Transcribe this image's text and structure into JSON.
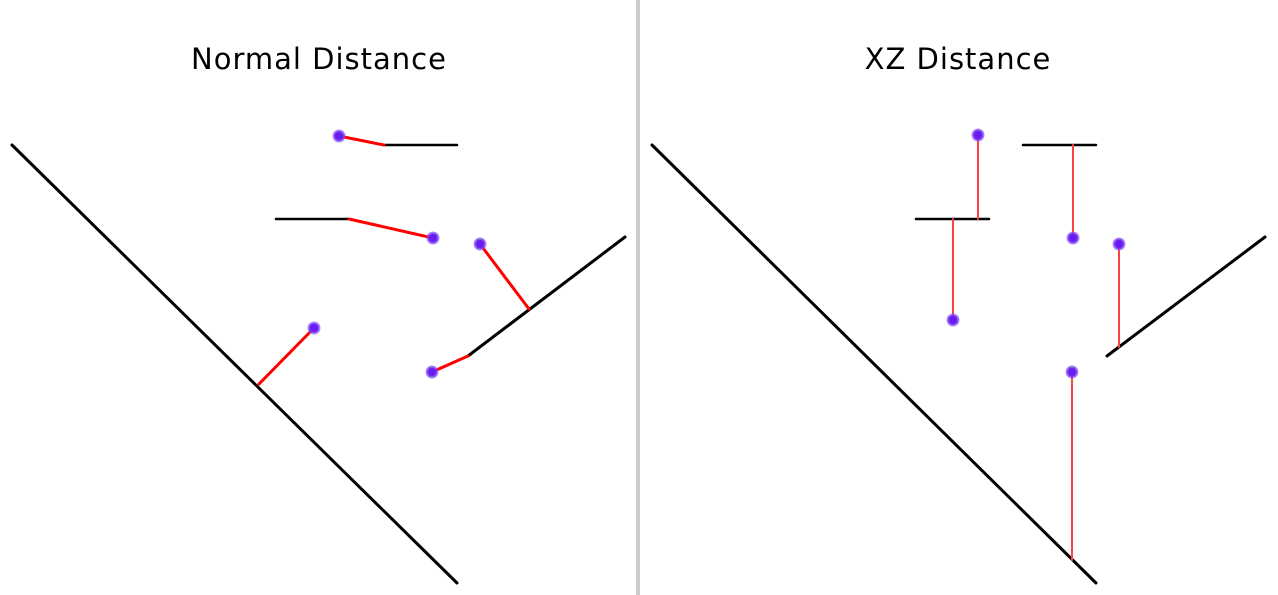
{
  "panels": [
    {
      "title": "Normal Distance"
    },
    {
      "title": "XZ Distance"
    }
  ],
  "colors": {
    "surface": "#000000",
    "distance_line": "#ff0000",
    "xz_distance_line": "#ff4040",
    "point": "#6a1cf0",
    "divider": "#cccccc"
  }
}
